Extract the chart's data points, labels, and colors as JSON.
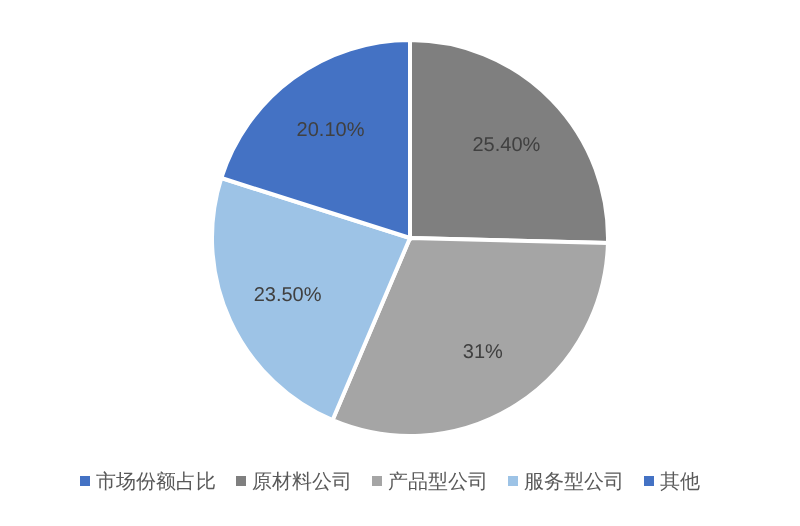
{
  "chart_data": {
    "type": "pie",
    "categories": [
      "原材料公司",
      "产品型公司",
      "服务型公司",
      "其他"
    ],
    "series": [
      {
        "name": "市场份额占比",
        "color": "#4472c4",
        "values": [
          25.4,
          31,
          23.5,
          20.1
        ]
      }
    ],
    "colors": [
      "#7f7f7f",
      "#a5a5a5",
      "#9dc3e6",
      "#4472c4"
    ],
    "value_labels": [
      "25.40%",
      "31%",
      "23.50%",
      "20.10%"
    ],
    "legend": "bottom"
  }
}
